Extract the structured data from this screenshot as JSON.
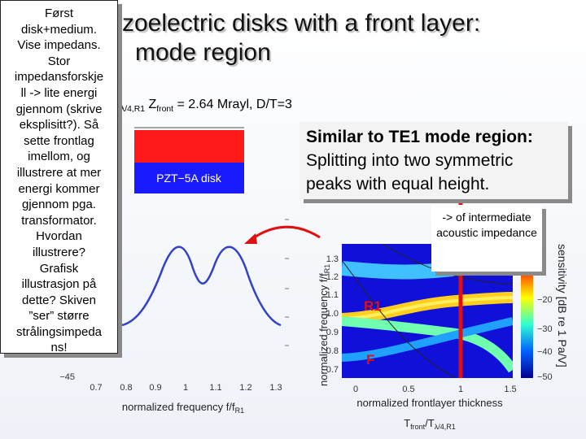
{
  "title": {
    "line1": "zoelectric disks with a front layer:",
    "line2": "mode region"
  },
  "note": {
    "lines": [
      "Først",
      "disk+medium.",
      "Vise impedans.",
      "Stor",
      "impedansforskje",
      "ll -> lite energi",
      "gjennom (skrive",
      "eksplisitt?). Så",
      "sette frontlag",
      "imellom, og",
      "illustrere at mer",
      "energi kommer",
      "gjennom pga.",
      "transformator.",
      "Hvordan",
      "illustrere?",
      "Grafisk",
      "illustrasjon på",
      "dette? Skiven",
      "”ser” større",
      "strålingsimpeda",
      "ns!"
    ]
  },
  "subtitle": {
    "prefix_sub": "λ/4,R1",
    "main": "Z",
    "sub": "front",
    "rest": " = 2.64 Mrayl, D/T=3"
  },
  "disk_diagram": {
    "label": "PZT−5A disk"
  },
  "highlight": {
    "heading": "Similar to TE1 mode region:",
    "body": "Splitting into two symmetric peaks with equal height."
  },
  "small_callout": {
    "text": "-> of intermediate acoustic impedance"
  },
  "left_plot": {
    "ytick": "−45",
    "xticks": [
      "0.7",
      "0.8",
      "0.9",
      "1",
      "1.1",
      "1.2",
      "1.3"
    ],
    "xlabel_main": "normalized frequency f/f",
    "xlabel_sub": "R1"
  },
  "right_plot": {
    "ylabel_main": "normalized frequency f/f",
    "ylabel_sub": "R1",
    "yticks": [
      "1.3",
      "1.2",
      "1.1",
      "1.0",
      "0.9",
      "0.8",
      "0.7"
    ],
    "xticks": [
      "0",
      "0.5",
      "1",
      "1.5"
    ],
    "xlabel": "normalized frontlayer thickness",
    "xlabel2": {
      "main": "T",
      "sub1": "front",
      "mid": "/T",
      "sub2": "λ/4,R1"
    },
    "colorbar_ticks": [
      "−20",
      "−30",
      "−40",
      "−50"
    ],
    "colorbar_label": "sensitivity [dB re 1 Pa/V]",
    "annotations": [
      "R1",
      "F"
    ]
  }
}
